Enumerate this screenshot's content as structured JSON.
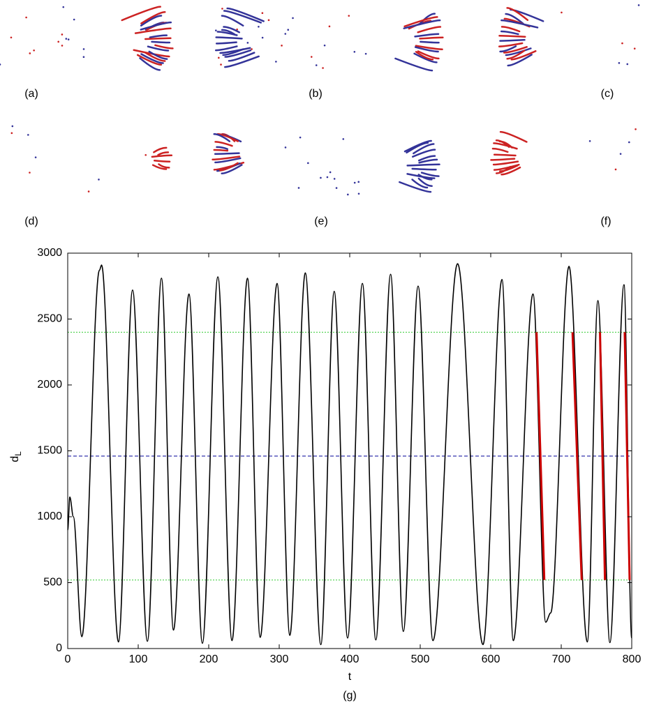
{
  "panel_labels": [
    "(a)",
    "(b)",
    "(c)",
    "(d)",
    "(e)",
    "(f)"
  ],
  "chart_data": {
    "type": "line",
    "caption": "(g)",
    "xlabel": "t",
    "ylabel": {
      "text": "d",
      "subscript": "L"
    },
    "xlim": [
      0,
      800
    ],
    "xticks": [
      0,
      100,
      200,
      300,
      400,
      500,
      600,
      700,
      800
    ],
    "ylim": [
      0,
      3000
    ],
    "yticks": [
      0,
      500,
      1000,
      1500,
      2000,
      2500,
      3000
    ],
    "series": [
      {
        "color": "#000000",
        "x": [
          0,
          3,
          8,
          20,
          45,
          48,
          72,
          92,
          113,
          133,
          150,
          172,
          191,
          213,
          233,
          255,
          273,
          297,
          315,
          337,
          359,
          378,
          397,
          418,
          437,
          458,
          476,
          497,
          518,
          553,
          589,
          616,
          632,
          660,
          678,
          685,
          711,
          737,
          752,
          769,
          789,
          800
        ],
        "values": [
          900,
          1150,
          1000,
          90,
          2870,
          2910,
          50,
          2720,
          55,
          2810,
          140,
          2690,
          40,
          2820,
          60,
          2810,
          85,
          2770,
          100,
          2850,
          30,
          2710,
          80,
          2770,
          65,
          2840,
          130,
          2750,
          60,
          2920,
          30,
          2800,
          60,
          2690,
          200,
          270,
          2900,
          50,
          2640,
          45,
          2760,
          80
        ]
      }
    ],
    "segments": [
      {
        "color": "#cc0000",
        "x": [
          665,
          676
        ],
        "values": [
          2400,
          520
        ]
      },
      {
        "color": "#cc0000",
        "x": [
          716,
          729
        ],
        "values": [
          2400,
          520
        ]
      },
      {
        "color": "#cc0000",
        "x": [
          755,
          762
        ],
        "values": [
          2400,
          520
        ]
      },
      {
        "color": "#cc0000",
        "x": [
          790,
          797
        ],
        "values": [
          2400,
          520
        ]
      }
    ],
    "hlines": [
      {
        "value": 2400,
        "color": "#33cc33",
        "dash": "2,2"
      },
      {
        "value": 1460,
        "color": "#000099",
        "dash": "5,3"
      },
      {
        "value": 520,
        "color": "#33cc33",
        "dash": "2,2"
      }
    ]
  }
}
